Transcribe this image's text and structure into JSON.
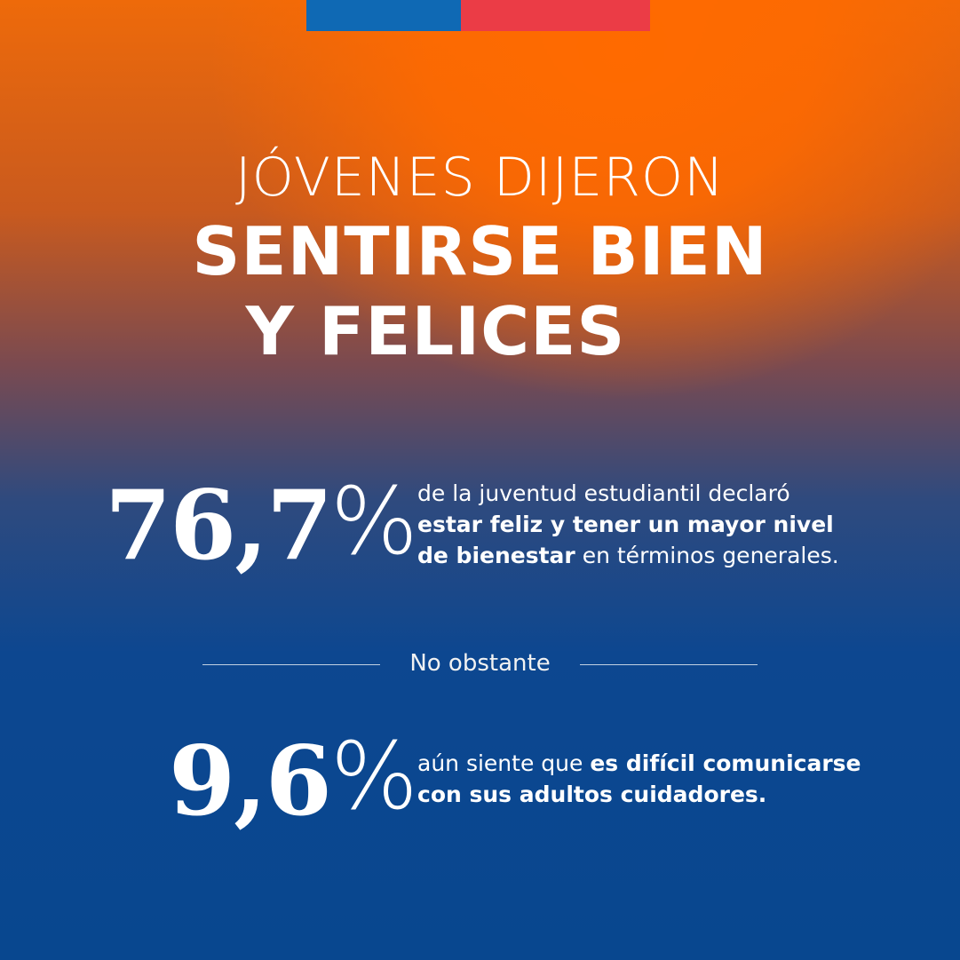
{
  "colors": {
    "flag_blue": "#0f69b4",
    "flag_red": "#eb3c46",
    "text": "#ffffff"
  },
  "title": {
    "line1": "JÓVENES DIJERON",
    "line2": "SENTIRSE BIEN",
    "line3": "Y FELICES"
  },
  "stat1": {
    "number": "76,7",
    "percent_sign": "%",
    "text": {
      "part1": "de la juventud estudiantil declaró",
      "bold1": "estar feliz y tener un mayor nivel",
      "bold2": "de bienestar",
      "part2": " en términos generales."
    }
  },
  "divider": {
    "label": "No obstante"
  },
  "stat2": {
    "number": "9,6",
    "percent_sign": "%",
    "text": {
      "part1": "aún siente que ",
      "bold1": "es difícil comunicarse",
      "bold2": "con sus adultos cuidadores."
    }
  }
}
